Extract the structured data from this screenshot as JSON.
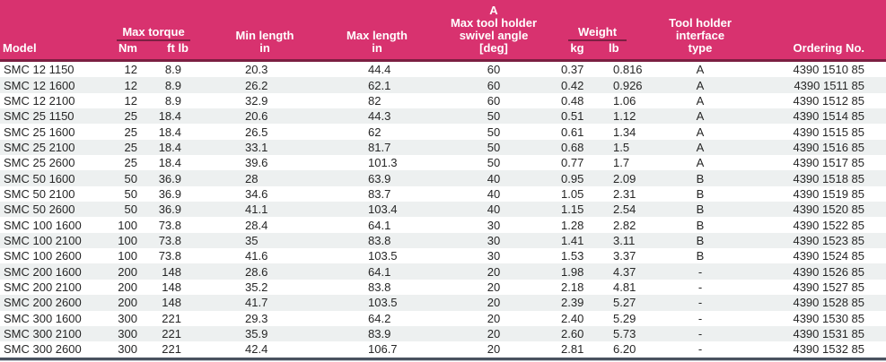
{
  "table": {
    "header": {
      "model": "Model",
      "max_torque": {
        "group": "Max torque",
        "nm": "Nm",
        "ftlb": "ft lb"
      },
      "min_length": {
        "line1": "Min length",
        "line2": "in"
      },
      "max_length": {
        "line1": "Max length",
        "line2": "in"
      },
      "swivel": {
        "line1": "A",
        "line2": "Max tool holder",
        "line3": "swivel angle",
        "line4": "[deg]"
      },
      "weight": {
        "group": "Weight",
        "kg": "kg",
        "lb": "lb"
      },
      "interface": {
        "line1": "Tool holder",
        "line2": "interface",
        "line3": "type"
      },
      "ordering": "Ordering No."
    },
    "rows": [
      [
        "SMC 12 1150",
        "12",
        "8.9",
        "20.3",
        "44.4",
        "60",
        "0.37",
        "0.816",
        "A",
        "4390 1510 85"
      ],
      [
        "SMC 12 1600",
        "12",
        "8.9",
        "26.2",
        "62.1",
        "60",
        "0.42",
        "0.926",
        "A",
        "4390 1511 85"
      ],
      [
        "SMC 12 2100",
        "12",
        "8.9",
        "32.9",
        "82",
        "60",
        "0.48",
        "1.06",
        "A",
        "4390 1512 85"
      ],
      [
        "SMC 25 1150",
        "25",
        "18.4",
        "20.6",
        "44.3",
        "50",
        "0.51",
        "1.12",
        "A",
        "4390 1514 85"
      ],
      [
        "SMC 25 1600",
        "25",
        "18.4",
        "26.5",
        "62",
        "50",
        "0.61",
        "1.34",
        "A",
        "4390 1515 85"
      ],
      [
        "SMC 25 2100",
        "25",
        "18.4",
        "33.1",
        "81.7",
        "50",
        "0.68",
        "1.5",
        "A",
        "4390 1516 85"
      ],
      [
        "SMC 25 2600",
        "25",
        "18.4",
        "39.6",
        "101.3",
        "50",
        "0.77",
        "1.7",
        "A",
        "4390 1517 85"
      ],
      [
        "SMC 50 1600",
        "50",
        "36.9",
        "28",
        "63.9",
        "40",
        "0.95",
        "2.09",
        "B",
        "4390 1518 85"
      ],
      [
        "SMC 50 2100",
        "50",
        "36.9",
        "34.6",
        "83.7",
        "40",
        "1.05",
        "2.31",
        "B",
        "4390 1519 85"
      ],
      [
        "SMC 50 2600",
        "50",
        "36.9",
        "41.1",
        "103.4",
        "40",
        "1.15",
        "2.54",
        "B",
        "4390 1520 85"
      ],
      [
        "SMC 100 1600",
        "100",
        "73.8",
        "28.4",
        "64.1",
        "30",
        "1.28",
        "2.82",
        "B",
        "4390 1522 85"
      ],
      [
        "SMC 100 2100",
        "100",
        "73.8",
        "35",
        "83.8",
        "30",
        "1.41",
        "3.11",
        "B",
        "4390 1523 85"
      ],
      [
        "SMC 100 2600",
        "100",
        "73.8",
        "41.6",
        "103.5",
        "30",
        "1.53",
        "3.37",
        "B",
        "4390 1524 85"
      ],
      [
        "SMC 200 1600",
        "200",
        "148",
        "28.6",
        "64.1",
        "20",
        "1.98",
        "4.37",
        "-",
        "4390 1526 85"
      ],
      [
        "SMC 200 2100",
        "200",
        "148",
        "35.2",
        "83.8",
        "20",
        "2.18",
        "4.81",
        "-",
        "4390 1527 85"
      ],
      [
        "SMC 200 2600",
        "200",
        "148",
        "41.7",
        "103.5",
        "20",
        "2.39",
        "5.27",
        "-",
        "4390 1528 85"
      ],
      [
        "SMC 300 1600",
        "300",
        "221",
        "29.3",
        "64.2",
        "20",
        "2.40",
        "5.29",
        "-",
        "4390 1530 85"
      ],
      [
        "SMC 300 2100",
        "300",
        "221",
        "35.9",
        "83.9",
        "20",
        "2.60",
        "5.73",
        "-",
        "4390 1531 85"
      ],
      [
        "SMC 300 2600",
        "300",
        "221",
        "42.4",
        "106.7",
        "20",
        "2.81",
        "6.20",
        "-",
        "4390 1532 85"
      ]
    ]
  },
  "colors": {
    "header_bg": "#d8326f",
    "header_text": "#ffffff",
    "underline": "#7c1f42",
    "separator": "#7c1f42",
    "stripe": "#edf0f0",
    "body_text": "#262626",
    "bottom_border": "#49525f"
  }
}
